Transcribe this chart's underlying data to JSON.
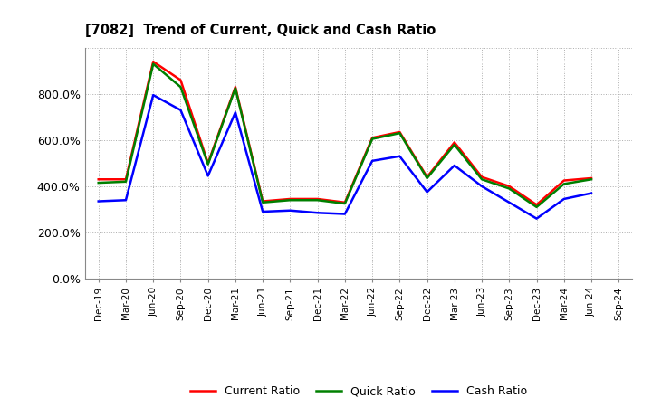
{
  "title": "[7082]  Trend of Current, Quick and Cash Ratio",
  "x_labels": [
    "Dec-19",
    "Mar-20",
    "Jun-20",
    "Sep-20",
    "Dec-20",
    "Mar-21",
    "Jun-21",
    "Sep-21",
    "Dec-21",
    "Mar-22",
    "Jun-22",
    "Sep-22",
    "Dec-22",
    "Mar-23",
    "Jun-23",
    "Sep-23",
    "Dec-23",
    "Mar-24",
    "Jun-24",
    "Sep-24"
  ],
  "current_ratio": [
    4.3,
    4.3,
    9.4,
    8.6,
    5.0,
    8.3,
    3.35,
    3.45,
    3.45,
    3.3,
    6.1,
    6.35,
    4.4,
    5.9,
    4.4,
    4.0,
    3.2,
    4.25,
    4.35,
    null
  ],
  "quick_ratio": [
    4.15,
    4.2,
    9.3,
    8.3,
    4.95,
    8.25,
    3.3,
    3.4,
    3.4,
    3.25,
    6.05,
    6.3,
    4.35,
    5.8,
    4.3,
    3.9,
    3.1,
    4.1,
    4.3,
    null
  ],
  "cash_ratio": [
    3.35,
    3.4,
    7.95,
    7.3,
    4.45,
    7.2,
    2.9,
    2.95,
    2.85,
    2.8,
    5.1,
    5.3,
    3.75,
    4.9,
    4.0,
    3.3,
    2.6,
    3.45,
    3.7,
    null
  ],
  "current_color": "#ff0000",
  "quick_color": "#008000",
  "cash_color": "#0000ff",
  "line_width": 1.8,
  "ylim": [
    0.0,
    10.0
  ],
  "ytick_vals": [
    0.0,
    2.0,
    4.0,
    6.0,
    8.0,
    10.0
  ],
  "ytick_labels": [
    "0.0%",
    "200.0%",
    "400.0%",
    "600.0%",
    "800.0%",
    ""
  ],
  "background_color": "#ffffff",
  "grid_color": "#999999",
  "legend_labels": [
    "Current Ratio",
    "Quick Ratio",
    "Cash Ratio"
  ]
}
